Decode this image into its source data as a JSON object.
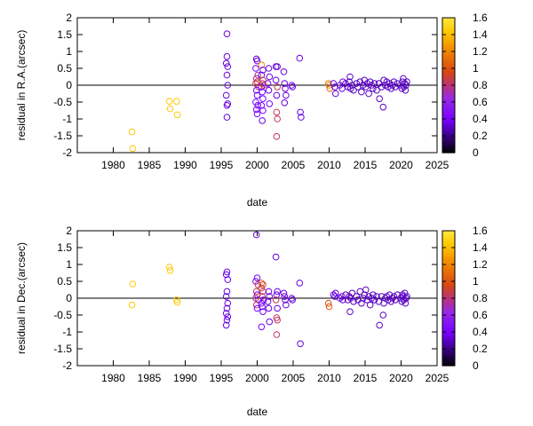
{
  "chart_data": [
    {
      "type": "scatter",
      "title": "",
      "xlabel": "date",
      "ylabel": "residual in R.A.(arcsec)",
      "xlim": [
        1975,
        2025
      ],
      "ylim": [
        -2,
        2
      ],
      "xticks": [
        "1980",
        "1985",
        "1990",
        "1995",
        "2000",
        "2005",
        "2010",
        "2015",
        "2020",
        "2025"
      ],
      "yticks": [
        "2",
        "1.5",
        "1",
        "0.5",
        "0",
        "-0.5",
        "-1",
        "-1.5",
        "-2"
      ],
      "zero_line": true,
      "colorbar": {
        "min": 0,
        "max": 1.6,
        "ticks": [
          "1.6",
          "1.4",
          "1.2",
          "1",
          "0.8",
          "0.6",
          "0.4",
          "0.2",
          "0"
        ],
        "palette": "black-purple-red-orange-yellow"
      },
      "points": [
        [
          1982.6,
          -1.38,
          1.45
        ],
        [
          1982.7,
          -1.88,
          1.45
        ],
        [
          1987.8,
          -0.48,
          1.45
        ],
        [
          1987.9,
          -0.7,
          1.45
        ],
        [
          1988.8,
          -0.48,
          1.45
        ],
        [
          1988.9,
          -0.88,
          1.45
        ],
        [
          1995.8,
          1.52,
          0.35
        ],
        [
          1995.8,
          0.85,
          0.35
        ],
        [
          1995.7,
          0.65,
          0.35
        ],
        [
          1995.9,
          0.55,
          0.35
        ],
        [
          1995.8,
          0.3,
          0.35
        ],
        [
          1995.9,
          0.0,
          0.35
        ],
        [
          1995.7,
          -0.3,
          0.35
        ],
        [
          1995.9,
          -0.55,
          0.35
        ],
        [
          1995.8,
          -0.6,
          0.35
        ],
        [
          1995.8,
          -0.95,
          0.35
        ],
        [
          1999.9,
          0.78,
          0.35
        ],
        [
          2000.0,
          0.72,
          0.35
        ],
        [
          1999.8,
          0.5,
          0.4
        ],
        [
          2000.1,
          0.3,
          0.75
        ],
        [
          1999.9,
          0.2,
          0.8
        ],
        [
          2000.0,
          0.1,
          0.85
        ],
        [
          1999.8,
          0.05,
          0.9
        ],
        [
          2000.2,
          -0.05,
          0.85
        ],
        [
          1999.9,
          -0.15,
          0.4
        ],
        [
          2000.0,
          -0.3,
          0.4
        ],
        [
          1999.8,
          -0.5,
          0.4
        ],
        [
          2000.1,
          -0.6,
          0.4
        ],
        [
          1999.9,
          -0.72,
          0.4
        ],
        [
          2000.0,
          -0.85,
          0.4
        ],
        [
          2000.6,
          0.6,
          1.2
        ],
        [
          2000.8,
          0.45,
          0.35
        ],
        [
          2000.6,
          0.3,
          0.35
        ],
        [
          2000.8,
          0.15,
          0.9
        ],
        [
          2000.7,
          0.05,
          0.85
        ],
        [
          2000.9,
          0.0,
          0.9
        ],
        [
          2000.6,
          -0.05,
          0.4
        ],
        [
          2000.7,
          -0.2,
          0.4
        ],
        [
          2000.8,
          -0.4,
          0.4
        ],
        [
          2000.6,
          -0.6,
          0.4
        ],
        [
          2000.8,
          -0.75,
          0.4
        ],
        [
          2000.7,
          -1.05,
          0.35
        ],
        [
          2001.6,
          0.5,
          0.35
        ],
        [
          2001.7,
          0.25,
          0.35
        ],
        [
          2001.5,
          0.05,
          0.4
        ],
        [
          2001.6,
          -0.15,
          0.35
        ],
        [
          2001.7,
          -0.55,
          0.4
        ],
        [
          2002.6,
          0.55,
          0.35
        ],
        [
          2002.8,
          0.55,
          0.35
        ],
        [
          2002.6,
          0.15,
          0.35
        ],
        [
          2002.8,
          -0.05,
          0.85
        ],
        [
          2002.7,
          -0.3,
          0.35
        ],
        [
          2002.7,
          -0.8,
          0.85
        ],
        [
          2002.8,
          -1.0,
          0.85
        ],
        [
          2002.7,
          -1.52,
          0.85
        ],
        [
          2003.7,
          0.4,
          0.35
        ],
        [
          2003.8,
          0.05,
          0.35
        ],
        [
          2003.9,
          -0.1,
          0.35
        ],
        [
          2004.0,
          -0.3,
          0.35
        ],
        [
          2003.8,
          -0.52,
          0.35
        ],
        [
          2004.8,
          0.0,
          0.4
        ],
        [
          2004.9,
          -0.05,
          0.35
        ],
        [
          2005.9,
          0.8,
          0.35
        ],
        [
          2006.0,
          -0.8,
          0.35
        ],
        [
          2006.1,
          -0.95,
          0.35
        ],
        [
          2009.9,
          0.05,
          1.2
        ],
        [
          2010.0,
          0.0,
          1.2
        ],
        [
          2010.1,
          -0.1,
          1.1
        ],
        [
          2010.6,
          0.05,
          0.35
        ],
        [
          2010.8,
          -0.05,
          0.35
        ],
        [
          2010.9,
          -0.25,
          0.35
        ],
        [
          2011.5,
          0.0,
          0.35
        ],
        [
          2011.8,
          -0.1,
          0.35
        ],
        [
          2011.9,
          0.1,
          0.35
        ],
        [
          2012.3,
          0.05,
          0.3
        ],
        [
          2012.6,
          -0.05,
          0.3
        ],
        [
          2012.8,
          0.1,
          0.3
        ],
        [
          2012.9,
          0.25,
          0.3
        ],
        [
          2013.0,
          -0.1,
          0.3
        ],
        [
          2013.2,
          0.0,
          0.3
        ],
        [
          2013.4,
          -0.15,
          0.3
        ],
        [
          2013.8,
          0.05,
          0.3
        ],
        [
          2014.0,
          -0.05,
          0.3
        ],
        [
          2014.3,
          0.1,
          0.3
        ],
        [
          2014.5,
          -0.2,
          0.3
        ],
        [
          2014.7,
          0.0,
          0.3
        ],
        [
          2014.9,
          0.15,
          0.3
        ],
        [
          2015.1,
          -0.05,
          0.3
        ],
        [
          2015.3,
          0.05,
          0.3
        ],
        [
          2015.5,
          -0.25,
          0.3
        ],
        [
          2015.7,
          0.1,
          0.3
        ],
        [
          2015.9,
          0.0,
          0.3
        ],
        [
          2016.1,
          -0.1,
          0.3
        ],
        [
          2016.3,
          0.05,
          0.3
        ],
        [
          2016.6,
          -0.15,
          0.3
        ],
        [
          2016.9,
          0.05,
          0.3
        ],
        [
          2017.0,
          -0.4,
          0.3
        ],
        [
          2017.3,
          -0.05,
          0.3
        ],
        [
          2017.5,
          -0.65,
          0.3
        ],
        [
          2017.6,
          0.15,
          0.3
        ],
        [
          2017.8,
          0.0,
          0.3
        ],
        [
          2018.0,
          0.1,
          0.3
        ],
        [
          2018.2,
          -0.05,
          0.3
        ],
        [
          2018.4,
          0.05,
          0.3
        ],
        [
          2018.6,
          -0.1,
          0.3
        ],
        [
          2018.8,
          0.0,
          0.3
        ],
        [
          2019.0,
          0.1,
          0.3
        ],
        [
          2019.2,
          -0.05,
          0.3
        ],
        [
          2019.5,
          0.05,
          0.3
        ],
        [
          2019.9,
          0.0,
          0.3
        ],
        [
          2020.1,
          -0.1,
          0.3
        ],
        [
          2020.2,
          0.1,
          0.3
        ],
        [
          2020.3,
          0.2,
          0.3
        ],
        [
          2020.4,
          -0.05,
          0.3
        ],
        [
          2020.5,
          0.05,
          0.3
        ],
        [
          2020.6,
          -0.15,
          0.3
        ],
        [
          2020.7,
          0.0,
          0.3
        ],
        [
          2020.8,
          0.1,
          0.3
        ]
      ]
    },
    {
      "type": "scatter",
      "title": "",
      "xlabel": "date",
      "ylabel": "residual in Dec.(arcsec)",
      "xlim": [
        1975,
        2025
      ],
      "ylim": [
        -2,
        2
      ],
      "xticks": [
        "1980",
        "1985",
        "1990",
        "1995",
        "2000",
        "2005",
        "2010",
        "2015",
        "2020",
        "2025"
      ],
      "yticks": [
        "2",
        "1.5",
        "1",
        "0.5",
        "0",
        "-0.5",
        "-1",
        "-1.5",
        "-2"
      ],
      "zero_line": true,
      "colorbar": {
        "min": 0,
        "max": 1.6,
        "ticks": [
          "1.6",
          "1.4",
          "1.2",
          "1",
          "0.8",
          "0.6",
          "0.4",
          "0.2",
          "0"
        ],
        "palette": "black-purple-red-orange-yellow"
      },
      "points": [
        [
          1982.7,
          0.42,
          1.45
        ],
        [
          1982.6,
          -0.2,
          1.45
        ],
        [
          1987.8,
          0.92,
          1.45
        ],
        [
          1987.9,
          0.82,
          1.45
        ],
        [
          1988.8,
          -0.05,
          1.45
        ],
        [
          1988.9,
          -0.12,
          1.45
        ],
        [
          1995.8,
          0.78,
          0.35
        ],
        [
          1995.7,
          0.7,
          0.35
        ],
        [
          1995.9,
          0.55,
          0.35
        ],
        [
          1995.8,
          0.2,
          0.35
        ],
        [
          1995.7,
          0.05,
          0.35
        ],
        [
          1995.9,
          -0.15,
          0.35
        ],
        [
          1995.8,
          -0.3,
          0.35
        ],
        [
          1995.7,
          -0.45,
          0.35
        ],
        [
          1995.9,
          -0.55,
          0.35
        ],
        [
          1995.8,
          -0.65,
          0.35
        ],
        [
          1995.7,
          -0.8,
          0.35
        ],
        [
          1999.9,
          1.88,
          0.35
        ],
        [
          2000.0,
          0.6,
          0.4
        ],
        [
          1999.8,
          0.5,
          0.4
        ],
        [
          2000.1,
          0.4,
          0.85
        ],
        [
          1999.9,
          0.2,
          0.85
        ],
        [
          2000.0,
          0.1,
          0.4
        ],
        [
          1999.8,
          0.0,
          0.85
        ],
        [
          2000.2,
          -0.05,
          0.4
        ],
        [
          1999.9,
          -0.2,
          0.85
        ],
        [
          2000.0,
          -0.3,
          0.4
        ],
        [
          2000.6,
          0.45,
          1.1
        ],
        [
          2000.8,
          0.4,
          0.9
        ],
        [
          2000.6,
          0.3,
          0.9
        ],
        [
          2000.8,
          0.2,
          0.85
        ],
        [
          2000.7,
          0.05,
          0.85
        ],
        [
          2000.9,
          -0.05,
          0.4
        ],
        [
          2000.6,
          -0.15,
          0.4
        ],
        [
          2000.7,
          -0.25,
          0.4
        ],
        [
          2000.8,
          -0.4,
          0.4
        ],
        [
          2000.6,
          -0.85,
          0.4
        ],
        [
          2001.6,
          0.2,
          0.35
        ],
        [
          2001.7,
          0.05,
          0.35
        ],
        [
          2001.5,
          -0.1,
          0.35
        ],
        [
          2001.6,
          -0.3,
          0.35
        ],
        [
          2001.7,
          -0.7,
          0.35
        ],
        [
          2002.6,
          1.22,
          0.35
        ],
        [
          2002.8,
          0.2,
          0.35
        ],
        [
          2002.7,
          0.1,
          0.35
        ],
        [
          2002.6,
          -0.05,
          0.85
        ],
        [
          2002.8,
          -0.3,
          0.35
        ],
        [
          2002.7,
          -0.58,
          0.85
        ],
        [
          2002.8,
          -0.65,
          0.85
        ],
        [
          2002.7,
          -1.08,
          0.85
        ],
        [
          2003.7,
          0.15,
          0.35
        ],
        [
          2003.8,
          0.05,
          0.35
        ],
        [
          2003.9,
          -0.05,
          0.35
        ],
        [
          2004.0,
          -0.2,
          0.35
        ],
        [
          2004.8,
          0.0,
          0.35
        ],
        [
          2004.9,
          -0.05,
          0.35
        ],
        [
          2005.9,
          0.45,
          0.35
        ],
        [
          2006.0,
          -1.35,
          0.35
        ],
        [
          2009.9,
          -0.15,
          1.0
        ],
        [
          2010.0,
          -0.25,
          1.0
        ],
        [
          2010.6,
          0.1,
          0.35
        ],
        [
          2010.8,
          0.05,
          0.35
        ],
        [
          2010.9,
          0.15,
          0.35
        ],
        [
          2011.5,
          0.0,
          0.35
        ],
        [
          2011.8,
          0.05,
          0.35
        ],
        [
          2011.9,
          -0.05,
          0.35
        ],
        [
          2012.3,
          0.1,
          0.3
        ],
        [
          2012.6,
          -0.05,
          0.3
        ],
        [
          2012.8,
          0.05,
          0.3
        ],
        [
          2012.9,
          -0.4,
          0.3
        ],
        [
          2013.0,
          0.0,
          0.3
        ],
        [
          2013.2,
          0.15,
          0.3
        ],
        [
          2013.4,
          -0.1,
          0.3
        ],
        [
          2013.8,
          0.05,
          0.3
        ],
        [
          2014.0,
          -0.05,
          0.3
        ],
        [
          2014.3,
          0.2,
          0.3
        ],
        [
          2014.5,
          -0.15,
          0.3
        ],
        [
          2014.7,
          0.0,
          0.3
        ],
        [
          2014.9,
          0.1,
          0.3
        ],
        [
          2015.1,
          0.25,
          0.3
        ],
        [
          2015.3,
          -0.05,
          0.3
        ],
        [
          2015.5,
          0.05,
          0.3
        ],
        [
          2015.7,
          -0.2,
          0.3
        ],
        [
          2015.9,
          0.0,
          0.3
        ],
        [
          2016.1,
          0.1,
          0.3
        ],
        [
          2016.3,
          -0.05,
          0.3
        ],
        [
          2016.6,
          0.05,
          0.3
        ],
        [
          2016.9,
          -0.1,
          0.3
        ],
        [
          2017.0,
          -0.8,
          0.3
        ],
        [
          2017.3,
          0.05,
          0.3
        ],
        [
          2017.5,
          -0.5,
          0.3
        ],
        [
          2017.6,
          -0.15,
          0.3
        ],
        [
          2017.8,
          0.0,
          0.3
        ],
        [
          2018.0,
          0.05,
          0.3
        ],
        [
          2018.2,
          -0.05,
          0.3
        ],
        [
          2018.4,
          0.1,
          0.3
        ],
        [
          2018.6,
          -0.1,
          0.3
        ],
        [
          2018.8,
          0.0,
          0.3
        ],
        [
          2019.0,
          0.05,
          0.3
        ],
        [
          2019.2,
          -0.05,
          0.3
        ],
        [
          2019.5,
          0.1,
          0.3
        ],
        [
          2019.9,
          0.0,
          0.3
        ],
        [
          2020.1,
          -0.1,
          0.3
        ],
        [
          2020.2,
          0.1,
          0.3
        ],
        [
          2020.3,
          0.05,
          0.3
        ],
        [
          2020.4,
          -0.05,
          0.3
        ],
        [
          2020.5,
          0.15,
          0.3
        ],
        [
          2020.6,
          -0.15,
          0.3
        ],
        [
          2020.7,
          0.0,
          0.3
        ],
        [
          2020.8,
          0.05,
          0.3
        ]
      ]
    }
  ]
}
